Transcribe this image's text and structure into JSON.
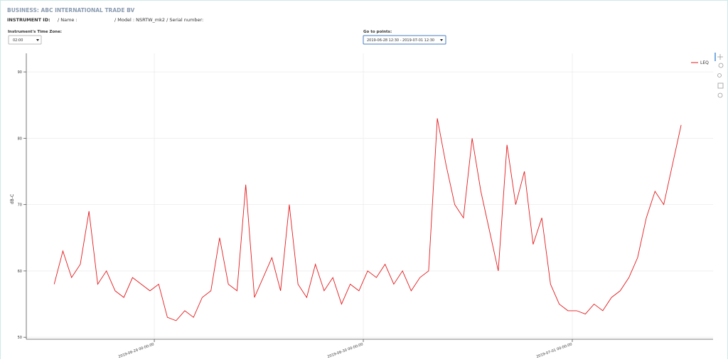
{
  "header": {
    "business": "BUSINESS: ABC INTERNATIONAL TRADE BV",
    "instrument_id": "INSTRUMENT ID:",
    "name": "/ Name :",
    "model": "/ Model : NSRTW_mk2 / Serial number:"
  },
  "controls": {
    "time_zone_label": "Instrument's Time Zone:",
    "time_zone_value": "02:00",
    "go_to_label": "Go to points:",
    "go_to_value": "2019-06-28 12:30 - 2019-07-01 12:30"
  },
  "chart_data": {
    "type": "line",
    "ylabel": "dB-C",
    "x": [
      "2019-06-28 12:30",
      "2019-06-28 13:30",
      "2019-06-28 14:30",
      "2019-06-28 15:30",
      "2019-06-28 16:30",
      "2019-06-28 17:30",
      "2019-06-28 18:30",
      "2019-06-28 19:30",
      "2019-06-28 20:30",
      "2019-06-28 21:30",
      "2019-06-28 22:30",
      "2019-06-28 23:30",
      "2019-06-29 00:30",
      "2019-06-29 01:30",
      "2019-06-29 02:30",
      "2019-06-29 03:30",
      "2019-06-29 04:30",
      "2019-06-29 05:30",
      "2019-06-29 06:30",
      "2019-06-29 07:30",
      "2019-06-29 08:30",
      "2019-06-29 09:30",
      "2019-06-29 10:30",
      "2019-06-29 11:30",
      "2019-06-29 12:30",
      "2019-06-29 13:30",
      "2019-06-29 14:30",
      "2019-06-29 15:30",
      "2019-06-29 16:30",
      "2019-06-29 17:30",
      "2019-06-29 18:30",
      "2019-06-29 19:30",
      "2019-06-29 20:30",
      "2019-06-29 21:30",
      "2019-06-29 22:30",
      "2019-06-29 23:30",
      "2019-06-30 00:30",
      "2019-06-30 01:30",
      "2019-06-30 02:30",
      "2019-06-30 03:30",
      "2019-06-30 04:30",
      "2019-06-30 05:30",
      "2019-06-30 06:30",
      "2019-06-30 07:30",
      "2019-06-30 08:30",
      "2019-06-30 09:30",
      "2019-06-30 10:30",
      "2019-06-30 11:30",
      "2019-06-30 12:30",
      "2019-06-30 13:30",
      "2019-06-30 14:30",
      "2019-06-30 15:30",
      "2019-06-30 16:30",
      "2019-06-30 17:30",
      "2019-06-30 18:30",
      "2019-06-30 19:30",
      "2019-06-30 20:30",
      "2019-06-30 21:30",
      "2019-06-30 22:30",
      "2019-06-30 23:30",
      "2019-07-01 00:30",
      "2019-07-01 01:30",
      "2019-07-01 02:30",
      "2019-07-01 03:30",
      "2019-07-01 04:30",
      "2019-07-01 05:30",
      "2019-07-01 06:30",
      "2019-07-01 07:30",
      "2019-07-01 08:30",
      "2019-07-01 09:30",
      "2019-07-01 10:30",
      "2019-07-01 11:30",
      "2019-07-01 12:30"
    ],
    "series": [
      {
        "name": "LEQ",
        "color": "#e31a1c",
        "values": [
          58,
          63,
          59,
          61,
          69,
          58,
          60,
          57,
          56,
          59,
          58,
          57,
          58,
          53,
          52.5,
          54,
          53,
          56,
          57,
          65,
          58,
          57,
          73,
          56,
          59,
          62,
          57,
          70,
          58,
          56,
          61,
          57,
          59,
          55,
          58,
          57,
          60,
          59,
          61,
          58,
          60,
          57,
          59,
          60,
          83,
          76,
          70,
          68,
          80,
          72,
          66,
          60,
          79,
          70,
          75,
          64,
          68,
          58,
          55,
          54,
          54,
          53.5,
          55,
          54,
          56,
          57,
          59,
          62,
          68,
          72,
          70,
          76,
          82
        ]
      }
    ],
    "xlim": [
      "2019-06-28 09:18",
      "2019-07-01 16:10"
    ],
    "xticks": [
      "2019-06-29 00:00:00",
      "2019-06-30 00:00:00",
      "2019-07-01 00:00:00"
    ],
    "ylim": [
      49.7,
      92.8
    ],
    "yticks": [
      50,
      60,
      70,
      80,
      90
    ],
    "grid": true,
    "legend": "top-right"
  }
}
